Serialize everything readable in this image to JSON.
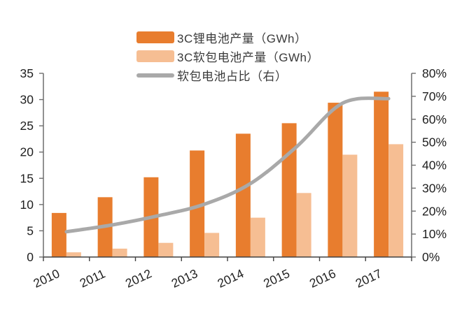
{
  "legend": {
    "items": [
      {
        "label": "3C锂电池产量（GWh）",
        "swatch": "bar-dark-orange"
      },
      {
        "label": "3C软包电池产量（GWh）",
        "swatch": "bar-peach"
      },
      {
        "label": "软包电池占比（右）",
        "swatch": "gray-line"
      }
    ]
  },
  "chart_data": {
    "type": "combo-bar-line",
    "categories": [
      "2010",
      "2011",
      "2012",
      "2013",
      "2014",
      "2015",
      "2016",
      "2017"
    ],
    "series": [
      {
        "name": "3C锂电池产量（GWh）",
        "type": "bar",
        "axis": "left",
        "color": "#E87D2E",
        "values": [
          8.4,
          11.4,
          15.2,
          20.3,
          23.5,
          25.5,
          29.4,
          31.5
        ]
      },
      {
        "name": "3C软包电池产量（GWh）",
        "type": "bar",
        "axis": "left",
        "color": "#F6BE93",
        "values": [
          0.9,
          1.6,
          2.7,
          4.6,
          7.5,
          12.2,
          19.5,
          21.5
        ]
      },
      {
        "name": "软包电池占比（右）",
        "type": "line",
        "axis": "right",
        "color": "#A9A9A9",
        "values": [
          11,
          14,
          18,
          23,
          32,
          48,
          67,
          69
        ]
      }
    ],
    "left_axis": {
      "min": 0,
      "max": 35,
      "step": 5,
      "ticks": [
        "0",
        "5",
        "10",
        "15",
        "20",
        "25",
        "30",
        "35"
      ]
    },
    "right_axis": {
      "min": 0,
      "max": 80,
      "step": 10,
      "ticks": [
        "0%",
        "10%",
        "20%",
        "30%",
        "40%",
        "50%",
        "60%",
        "70%",
        "80%"
      ],
      "unit": "%"
    },
    "grid": false,
    "legend_position": "top",
    "x_label_rotation_deg": -25
  },
  "colors": {
    "bar_primary": "#E87D2E",
    "bar_secondary": "#F6BE93",
    "line": "#A9A9A9",
    "axis": "#6e6e6e",
    "axis_bottom": "#404040",
    "text": "#1f1f1f"
  }
}
